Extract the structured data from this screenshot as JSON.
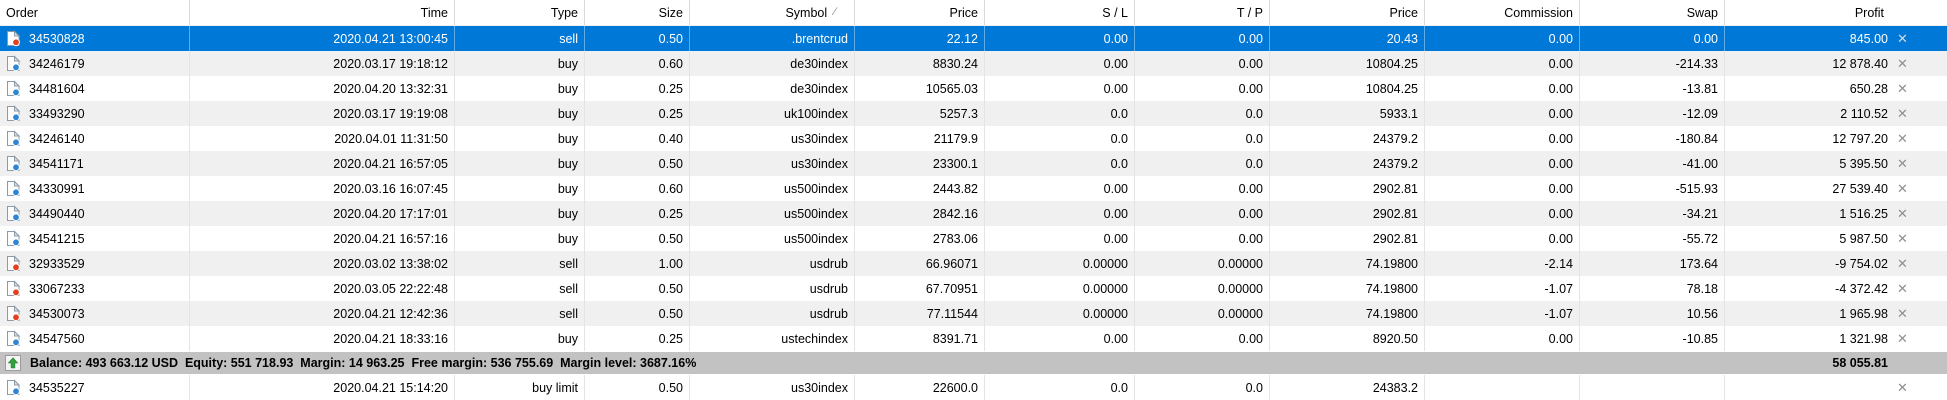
{
  "table": {
    "columns": [
      {
        "key": "order",
        "label": "Order"
      },
      {
        "key": "time",
        "label": "Time"
      },
      {
        "key": "type",
        "label": "Type"
      },
      {
        "key": "size",
        "label": "Size"
      },
      {
        "key": "symbol",
        "label": "Symbol"
      },
      {
        "key": "price",
        "label": "Price"
      },
      {
        "key": "sl",
        "label": "S / L"
      },
      {
        "key": "tp",
        "label": "T / P"
      },
      {
        "key": "price_current",
        "label": "Price"
      },
      {
        "key": "commission",
        "label": "Commission"
      },
      {
        "key": "swap",
        "label": "Swap"
      },
      {
        "key": "profit",
        "label": "Profit"
      }
    ],
    "sort_column": "symbol",
    "sort_glyph": "∕",
    "close_glyph": "✕"
  },
  "rows": [
    {
      "selected": true,
      "icon": "sell",
      "order": "34530828",
      "time": "2020.04.21 13:00:45",
      "type": "sell",
      "size": "0.50",
      "symbol": ".brentcrud",
      "price": "22.12",
      "sl": "0.00",
      "tp": "0.00",
      "price_current": "20.43",
      "commission": "0.00",
      "swap": "0.00",
      "profit": "845.00"
    },
    {
      "selected": false,
      "icon": "buy",
      "order": "34246179",
      "time": "2020.03.17 19:18:12",
      "type": "buy",
      "size": "0.60",
      "symbol": "de30index",
      "price": "8830.24",
      "sl": "0.00",
      "tp": "0.00",
      "price_current": "10804.25",
      "commission": "0.00",
      "swap": "-214.33",
      "profit": "12 878.40"
    },
    {
      "selected": false,
      "icon": "buy",
      "order": "34481604",
      "time": "2020.04.20 13:32:31",
      "type": "buy",
      "size": "0.25",
      "symbol": "de30index",
      "price": "10565.03",
      "sl": "0.00",
      "tp": "0.00",
      "price_current": "10804.25",
      "commission": "0.00",
      "swap": "-13.81",
      "profit": "650.28"
    },
    {
      "selected": false,
      "icon": "buy",
      "order": "33493290",
      "time": "2020.03.17 19:19:08",
      "type": "buy",
      "size": "0.25",
      "symbol": "uk100index",
      "price": "5257.3",
      "sl": "0.0",
      "tp": "0.0",
      "price_current": "5933.1",
      "commission": "0.00",
      "swap": "-12.09",
      "profit": "2 110.52"
    },
    {
      "selected": false,
      "icon": "buy",
      "order": "34246140",
      "time": "2020.04.01 11:31:50",
      "type": "buy",
      "size": "0.40",
      "symbol": "us30index",
      "price": "21179.9",
      "sl": "0.0",
      "tp": "0.0",
      "price_current": "24379.2",
      "commission": "0.00",
      "swap": "-180.84",
      "profit": "12 797.20"
    },
    {
      "selected": false,
      "icon": "buy",
      "order": "34541171",
      "time": "2020.04.21 16:57:05",
      "type": "buy",
      "size": "0.50",
      "symbol": "us30index",
      "price": "23300.1",
      "sl": "0.0",
      "tp": "0.0",
      "price_current": "24379.2",
      "commission": "0.00",
      "swap": "-41.00",
      "profit": "5 395.50"
    },
    {
      "selected": false,
      "icon": "buy",
      "order": "34330991",
      "time": "2020.03.16 16:07:45",
      "type": "buy",
      "size": "0.60",
      "symbol": "us500index",
      "price": "2443.82",
      "sl": "0.00",
      "tp": "0.00",
      "price_current": "2902.81",
      "commission": "0.00",
      "swap": "-515.93",
      "profit": "27 539.40"
    },
    {
      "selected": false,
      "icon": "buy",
      "order": "34490440",
      "time": "2020.04.20 17:17:01",
      "type": "buy",
      "size": "0.25",
      "symbol": "us500index",
      "price": "2842.16",
      "sl": "0.00",
      "tp": "0.00",
      "price_current": "2902.81",
      "commission": "0.00",
      "swap": "-34.21",
      "profit": "1 516.25"
    },
    {
      "selected": false,
      "icon": "buy",
      "order": "34541215",
      "time": "2020.04.21 16:57:16",
      "type": "buy",
      "size": "0.50",
      "symbol": "us500index",
      "price": "2783.06",
      "sl": "0.00",
      "tp": "0.00",
      "price_current": "2902.81",
      "commission": "0.00",
      "swap": "-55.72",
      "profit": "5 987.50"
    },
    {
      "selected": false,
      "icon": "sell",
      "order": "32933529",
      "time": "2020.03.02 13:38:02",
      "type": "sell",
      "size": "1.00",
      "symbol": "usdrub",
      "price": "66.96071",
      "sl": "0.00000",
      "tp": "0.00000",
      "price_current": "74.19800",
      "commission": "-2.14",
      "swap": "173.64",
      "profit": "-9 754.02"
    },
    {
      "selected": false,
      "icon": "sell",
      "order": "33067233",
      "time": "2020.03.05 22:22:48",
      "type": "sell",
      "size": "0.50",
      "symbol": "usdrub",
      "price": "67.70951",
      "sl": "0.00000",
      "tp": "0.00000",
      "price_current": "74.19800",
      "commission": "-1.07",
      "swap": "78.18",
      "profit": "-4 372.42"
    },
    {
      "selected": false,
      "icon": "sell",
      "order": "34530073",
      "time": "2020.04.21 12:42:36",
      "type": "sell",
      "size": "0.50",
      "symbol": "usdrub",
      "price": "77.11544",
      "sl": "0.00000",
      "tp": "0.00000",
      "price_current": "74.19800",
      "commission": "-1.07",
      "swap": "10.56",
      "profit": "1 965.98"
    },
    {
      "selected": false,
      "icon": "buy",
      "order": "34547560",
      "time": "2020.04.21 18:33:16",
      "type": "buy",
      "size": "0.25",
      "symbol": "ustechindex",
      "price": "8391.71",
      "sl": "0.00",
      "tp": "0.00",
      "price_current": "8920.50",
      "commission": "0.00",
      "swap": "-10.85",
      "profit": "1 321.98"
    }
  ],
  "balance": {
    "text": "Balance: 493 663.12 USD  Equity: 551 718.93  Margin: 14 963.25  Free margin: 536 755.69  Margin level: 3687.16%",
    "total": "58 055.81"
  },
  "pending_rows": [
    {
      "selected": false,
      "icon": "buy",
      "order": "34535227",
      "time": "2020.04.21 15:14:20",
      "type": "buy limit",
      "size": "0.50",
      "symbol": "us30index",
      "price": "22600.0",
      "sl": "0.0",
      "tp": "0.0",
      "price_current": "24383.2",
      "commission": "",
      "swap": "",
      "profit": ""
    }
  ],
  "colors": {
    "selection": "#0078d7",
    "alt_row": "#f0f0f0",
    "balance_row": "#c2c2c2",
    "buy_dot": "#2e86d2",
    "sell_dot": "#e2401f",
    "close_icon": "#8f8f8f",
    "balance_arrow_green": "#2fa23c"
  }
}
